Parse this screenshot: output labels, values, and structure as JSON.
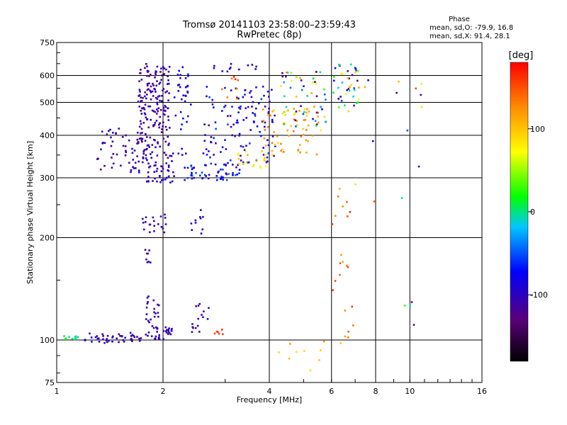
{
  "chart_data": {
    "type": "scatter",
    "title": "Tromsø 20141103 23:58:00–23:59:43",
    "subtitle": "RwPretec (8p)",
    "xlabel": "Frequency [MHz]",
    "ylabel": "Stationary phase Virtual Height [km]",
    "x_scale": "log",
    "y_scale": "log",
    "xlim": [
      1,
      16
    ],
    "ylim": [
      75,
      750
    ],
    "x_ticks": [
      1,
      2,
      4,
      6,
      8,
      10,
      16
    ],
    "y_ticks": [
      75,
      100,
      200,
      300,
      400,
      500,
      600,
      750
    ],
    "grid": true,
    "stats": {
      "heading": "Phase",
      "line_o": "mean, sd,O: -79.9, 16.8",
      "line_x": "mean, sd,X:  91.4, 28.1"
    },
    "colorbar": {
      "label": "[deg]",
      "min": -180,
      "max": 180,
      "ticks": [
        100,
        0,
        -100
      ],
      "colors": [
        "#000000",
        "#5a007a",
        "#0000ff",
        "#00c8ff",
        "#00ff00",
        "#ffff00",
        "#ff8c00",
        "#ff0000"
      ]
    },
    "clusters": [
      {
        "fx": [
          1.03,
          1.15
        ],
        "hy": [
          100,
          103
        ],
        "phase": [
          -20,
          20
        ],
        "n": 10
      },
      {
        "fx": [
          1.2,
          1.75
        ],
        "hy": [
          98,
          105
        ],
        "phase": [
          -120,
          -90
        ],
        "n": 45
      },
      {
        "fx": [
          1.75,
          1.95
        ],
        "hy": [
          100,
          135
        ],
        "phase": [
          -125,
          -95
        ],
        "n": 30
      },
      {
        "fx": [
          1.9,
          2.12
        ],
        "hy": [
          100,
          110
        ],
        "phase": [
          -120,
          -90
        ],
        "n": 25
      },
      {
        "fx": [
          2.4,
          2.7
        ],
        "hy": [
          105,
          130
        ],
        "phase": [
          -120,
          -90
        ],
        "n": 16
      },
      {
        "fx": [
          2.8,
          3.0
        ],
        "hy": [
          104,
          108
        ],
        "phase": [
          150,
          175
        ],
        "n": 6
      },
      {
        "fx": [
          1.75,
          2.05
        ],
        "hy": [
          205,
          235
        ],
        "phase": [
          -120,
          -90
        ],
        "n": 20
      },
      {
        "fx": [
          1.78,
          1.85
        ],
        "hy": [
          165,
          185
        ],
        "phase": [
          -120,
          -95
        ],
        "n": 8
      },
      {
        "fx": [
          2.4,
          2.6
        ],
        "hy": [
          205,
          250
        ],
        "phase": [
          -110,
          -60
        ],
        "n": 10
      },
      {
        "fx": [
          1.3,
          1.75
        ],
        "hy": [
          310,
          420
        ],
        "phase": [
          -120,
          -95
        ],
        "n": 55
      },
      {
        "fx": [
          1.7,
          2.1
        ],
        "hy": [
          380,
          650
        ],
        "phase": [
          -125,
          -95
        ],
        "n": 160
      },
      {
        "fx": [
          1.75,
          2.15
        ],
        "hy": [
          290,
          380
        ],
        "phase": [
          -120,
          -85
        ],
        "n": 70
      },
      {
        "fx": [
          2.15,
          2.4
        ],
        "hy": [
          350,
          640
        ],
        "phase": [
          -115,
          -60
        ],
        "n": 35
      },
      {
        "fx": [
          2.3,
          3.3
        ],
        "hy": [
          295,
          330
        ],
        "phase": [
          -110,
          -40
        ],
        "n": 55
      },
      {
        "fx": [
          2.6,
          4.2
        ],
        "hy": [
          330,
          560
        ],
        "phase": [
          -120,
          -50
        ],
        "n": 120
      },
      {
        "fx": [
          3.2,
          4.0
        ],
        "hy": [
          320,
          360
        ],
        "phase": [
          60,
          110
        ],
        "n": 18
      },
      {
        "fx": [
          3.8,
          5.6
        ],
        "hy": [
          350,
          480
        ],
        "phase": [
          80,
          140
        ],
        "n": 60
      },
      {
        "fx": [
          4.3,
          5.8
        ],
        "hy": [
          420,
          620
        ],
        "phase": [
          -150,
          130
        ],
        "n": 55
      },
      {
        "fx": [
          6.0,
          7.2
        ],
        "hy": [
          470,
          650
        ],
        "phase": [
          -140,
          120
        ],
        "n": 45
      },
      {
        "fx": [
          2.7,
          3.7
        ],
        "hy": [
          600,
          650
        ],
        "phase": [
          -110,
          -80
        ],
        "n": 12
      },
      {
        "fx": [
          2.9,
          3.3
        ],
        "hy": [
          500,
          600
        ],
        "phase": [
          120,
          170
        ],
        "n": 8
      },
      {
        "fx": [
          4.0,
          6.5
        ],
        "hy": [
          80,
          100
        ],
        "phase": [
          80,
          120
        ],
        "n": 10
      },
      {
        "fx": [
          6.0,
          7.0
        ],
        "hy": [
          100,
          300
        ],
        "phase": [
          100,
          170
        ],
        "n": 22
      },
      {
        "fx": [
          7.0,
          11.0
        ],
        "hy": [
          230,
          600
        ],
        "phase": [
          -130,
          160
        ],
        "n": 14
      },
      {
        "fx": [
          9.5,
          11.0
        ],
        "hy": [
          105,
          130
        ],
        "phase": [
          -130,
          110
        ],
        "n": 4
      }
    ]
  }
}
